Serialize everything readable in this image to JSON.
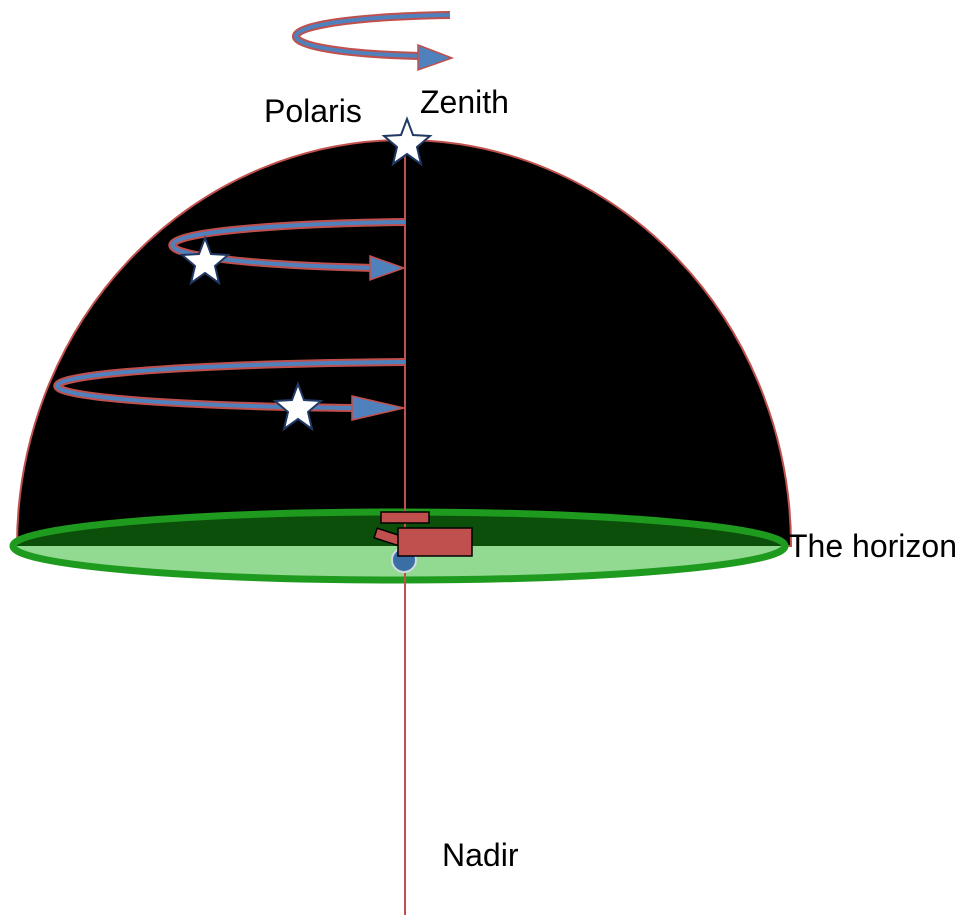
{
  "labels": {
    "polaris": "Polaris",
    "zenith": "Zenith",
    "horizon": "The horizon",
    "nadir": "Nadir"
  }
}
